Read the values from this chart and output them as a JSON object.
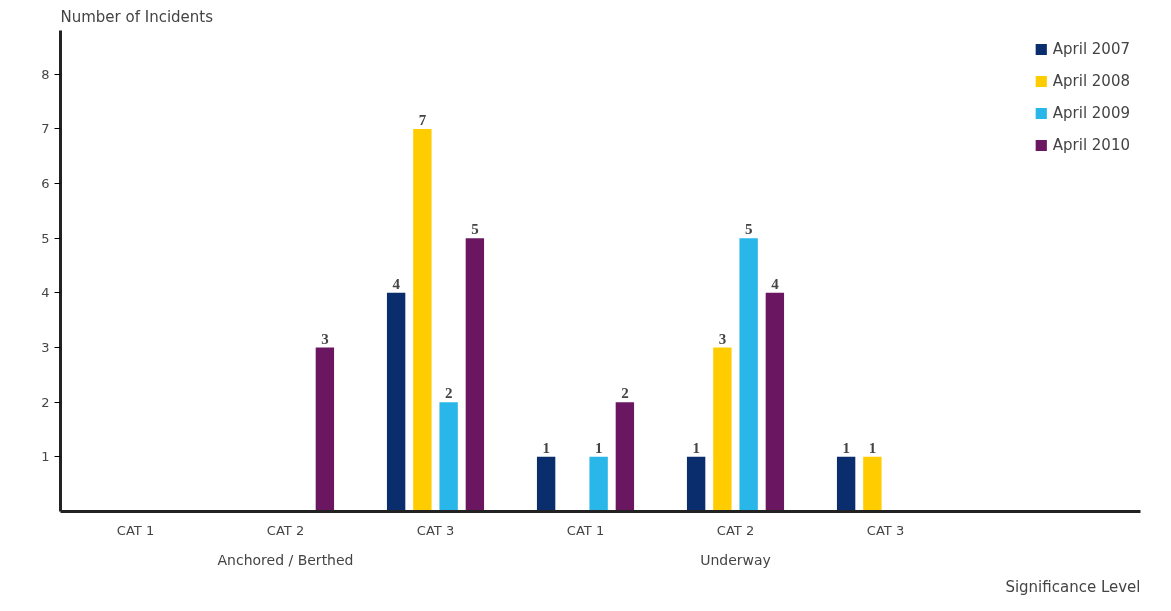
{
  "chart_data": {
    "type": "bar",
    "xlabel": "Significance Level",
    "ylabel": "Number of Incidents",
    "categories": [
      "CAT 1",
      "CAT 2",
      "CAT 3",
      "CAT 1",
      "CAT 2",
      "CAT 3"
    ],
    "series": [
      {
        "name": "April 2007",
        "color": "#0a2d6e",
        "values": [
          null,
          null,
          4,
          1,
          1,
          1
        ]
      },
      {
        "name": "April 2008",
        "color": "#ffcc00",
        "values": [
          null,
          null,
          7,
          null,
          3,
          1
        ]
      },
      {
        "name": "April 2009",
        "color": "#29b6e8",
        "values": [
          null,
          null,
          2,
          1,
          5,
          null
        ]
      },
      {
        "name": "April 2010",
        "color": "#6b1660",
        "values": [
          null,
          3,
          5,
          2,
          4,
          null
        ]
      }
    ],
    "ylim": [
      0,
      8.8
    ],
    "yticks": [
      1,
      2,
      3,
      4,
      5,
      6,
      7,
      8
    ],
    "grid": false,
    "legend": "top right",
    "data_labels": true,
    "annotations": [
      "Anchored / Berthed",
      "Underway"
    ]
  }
}
